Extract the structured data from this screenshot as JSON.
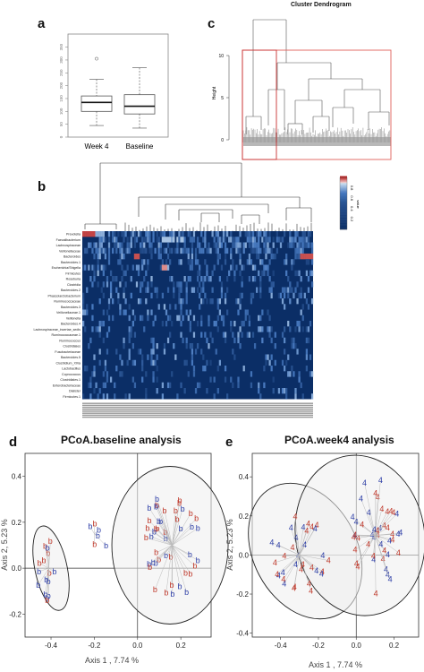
{
  "panels": {
    "a": "a",
    "b": "b",
    "c": "c",
    "d": "d",
    "e": "e"
  },
  "panel_a": {
    "categories": [
      "Week 4",
      "Baseline"
    ],
    "y_ticks": [
      "0",
      "50",
      "100",
      "150",
      "200",
      "250",
      "300",
      "350"
    ],
    "boxes": [
      {
        "name": "Week 4",
        "min": 45,
        "q1": 100,
        "median": 135,
        "q3": 160,
        "max": 225,
        "outliers": [
          305
        ]
      },
      {
        "name": "Baseline",
        "min": 35,
        "q1": 90,
        "median": 120,
        "q3": 165,
        "max": 270,
        "outliers": []
      }
    ]
  },
  "panel_c": {
    "title": "Cluster Dendrogram",
    "ylabel": "Height",
    "y_ticks": [
      "0",
      "5",
      "10"
    ]
  },
  "panel_b": {
    "legend_ticks": [
      "0.2",
      "0.4",
      "0.6",
      "0.8"
    ],
    "legend_label": "value",
    "rows": [
      "Prevotella",
      "Faecalibacterium",
      "Lachnospiraceae",
      "Veillonellaceae",
      "Bacteroides",
      "Bacteroides.1",
      "Escherichia/Shigella",
      "Firmicutes",
      "Roseburia",
      "Clostridia",
      "Bacteroides.2",
      "Phascolarctobacterium",
      "Ruminococcaceae",
      "Bacteroides.3",
      "Veillonellaceae.1",
      "Veillonella",
      "Bacteroides.4",
      "Lachnospiraceae_incertae_sedis",
      "Ruminococcaceae.1",
      "Ruminococcus",
      "Clostridiales",
      "Fusobacteriaceae",
      "Bacteroides.5",
      "Clostridium_XIVa",
      "Lactobacillus",
      "Coprococcus",
      "Clostridiales.1",
      "Enterobacteriaceae",
      "Dialister",
      "Firmicutes.1"
    ]
  },
  "panel_d": {
    "title": "PCoA.baseline analysis",
    "xlabel": "Axis 1 , 7.74 %",
    "ylabel": "Axis 2, 5.23 %",
    "marker": "b",
    "x_ticks": [
      "-0.4",
      "-0.2",
      "0.0",
      "0.2"
    ],
    "y_ticks": [
      "-0.2",
      "0.0",
      "0.2",
      "0.4"
    ]
  },
  "panel_e": {
    "title": "PCoA.week4 analysis",
    "xlabel": "Axis 1 , 7.74 %",
    "ylabel": "Axis 2, 5.23 %",
    "marker": "4",
    "x_ticks": [
      "-0.4",
      "-0.2",
      "0.0",
      "0.2"
    ],
    "y_ticks": [
      "-0.4",
      "-0.2",
      "0.0",
      "0.2",
      "0.4"
    ]
  },
  "colors": {
    "red": "#c0392b",
    "blue": "#2e3fa8",
    "heat_low": "#0b2e66",
    "heat_high": "#8b0000",
    "box_red": "#e05a5a"
  }
}
